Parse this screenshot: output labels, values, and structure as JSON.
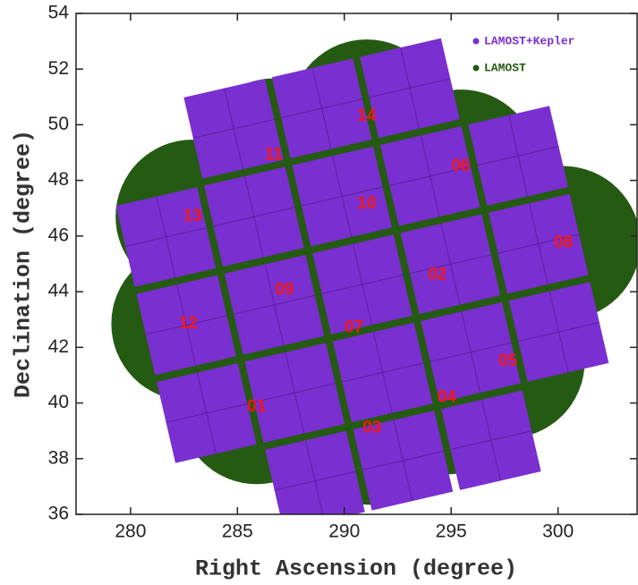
{
  "chart_data": {
    "type": "scatter",
    "x_label": "Right Ascension (degree)",
    "y_label": "Declination (degree)",
    "xlim": [
      277.45,
      303.7
    ],
    "ylim": [
      36,
      54
    ],
    "xticks": [
      280,
      285,
      290,
      295,
      300
    ],
    "yticks": [
      36,
      38,
      40,
      42,
      44,
      46,
      48,
      50,
      52,
      54
    ],
    "series": [
      {
        "name": "LAMOST+Kepler",
        "color": "#7a2fd0"
      },
      {
        "name": "LAMOST",
        "color": "#245a12"
      }
    ],
    "fields": [
      {
        "label": "01",
        "x": 285.9,
        "y": 39.85
      },
      {
        "label": "02",
        "x": 294.35,
        "y": 44.6
      },
      {
        "label": "03",
        "x": 291.3,
        "y": 39.1
      },
      {
        "label": "04",
        "x": 294.8,
        "y": 40.2
      },
      {
        "label": "05",
        "x": 297.65,
        "y": 41.5
      },
      {
        "label": "06",
        "x": 295.45,
        "y": 48.5
      },
      {
        "label": "07",
        "x": 290.45,
        "y": 42.7
      },
      {
        "label": "08",
        "x": 300.25,
        "y": 45.75
      },
      {
        "label": "09",
        "x": 287.2,
        "y": 44.05
      },
      {
        "label": "10",
        "x": 291.05,
        "y": 47.15
      },
      {
        "label": "11",
        "x": 286.7,
        "y": 48.9
      },
      {
        "label": "12",
        "x": 282.7,
        "y": 42.85
      },
      {
        "label": "13",
        "x": 282.9,
        "y": 46.7
      },
      {
        "label": "14",
        "x": 291.05,
        "y": 50.3
      }
    ]
  }
}
